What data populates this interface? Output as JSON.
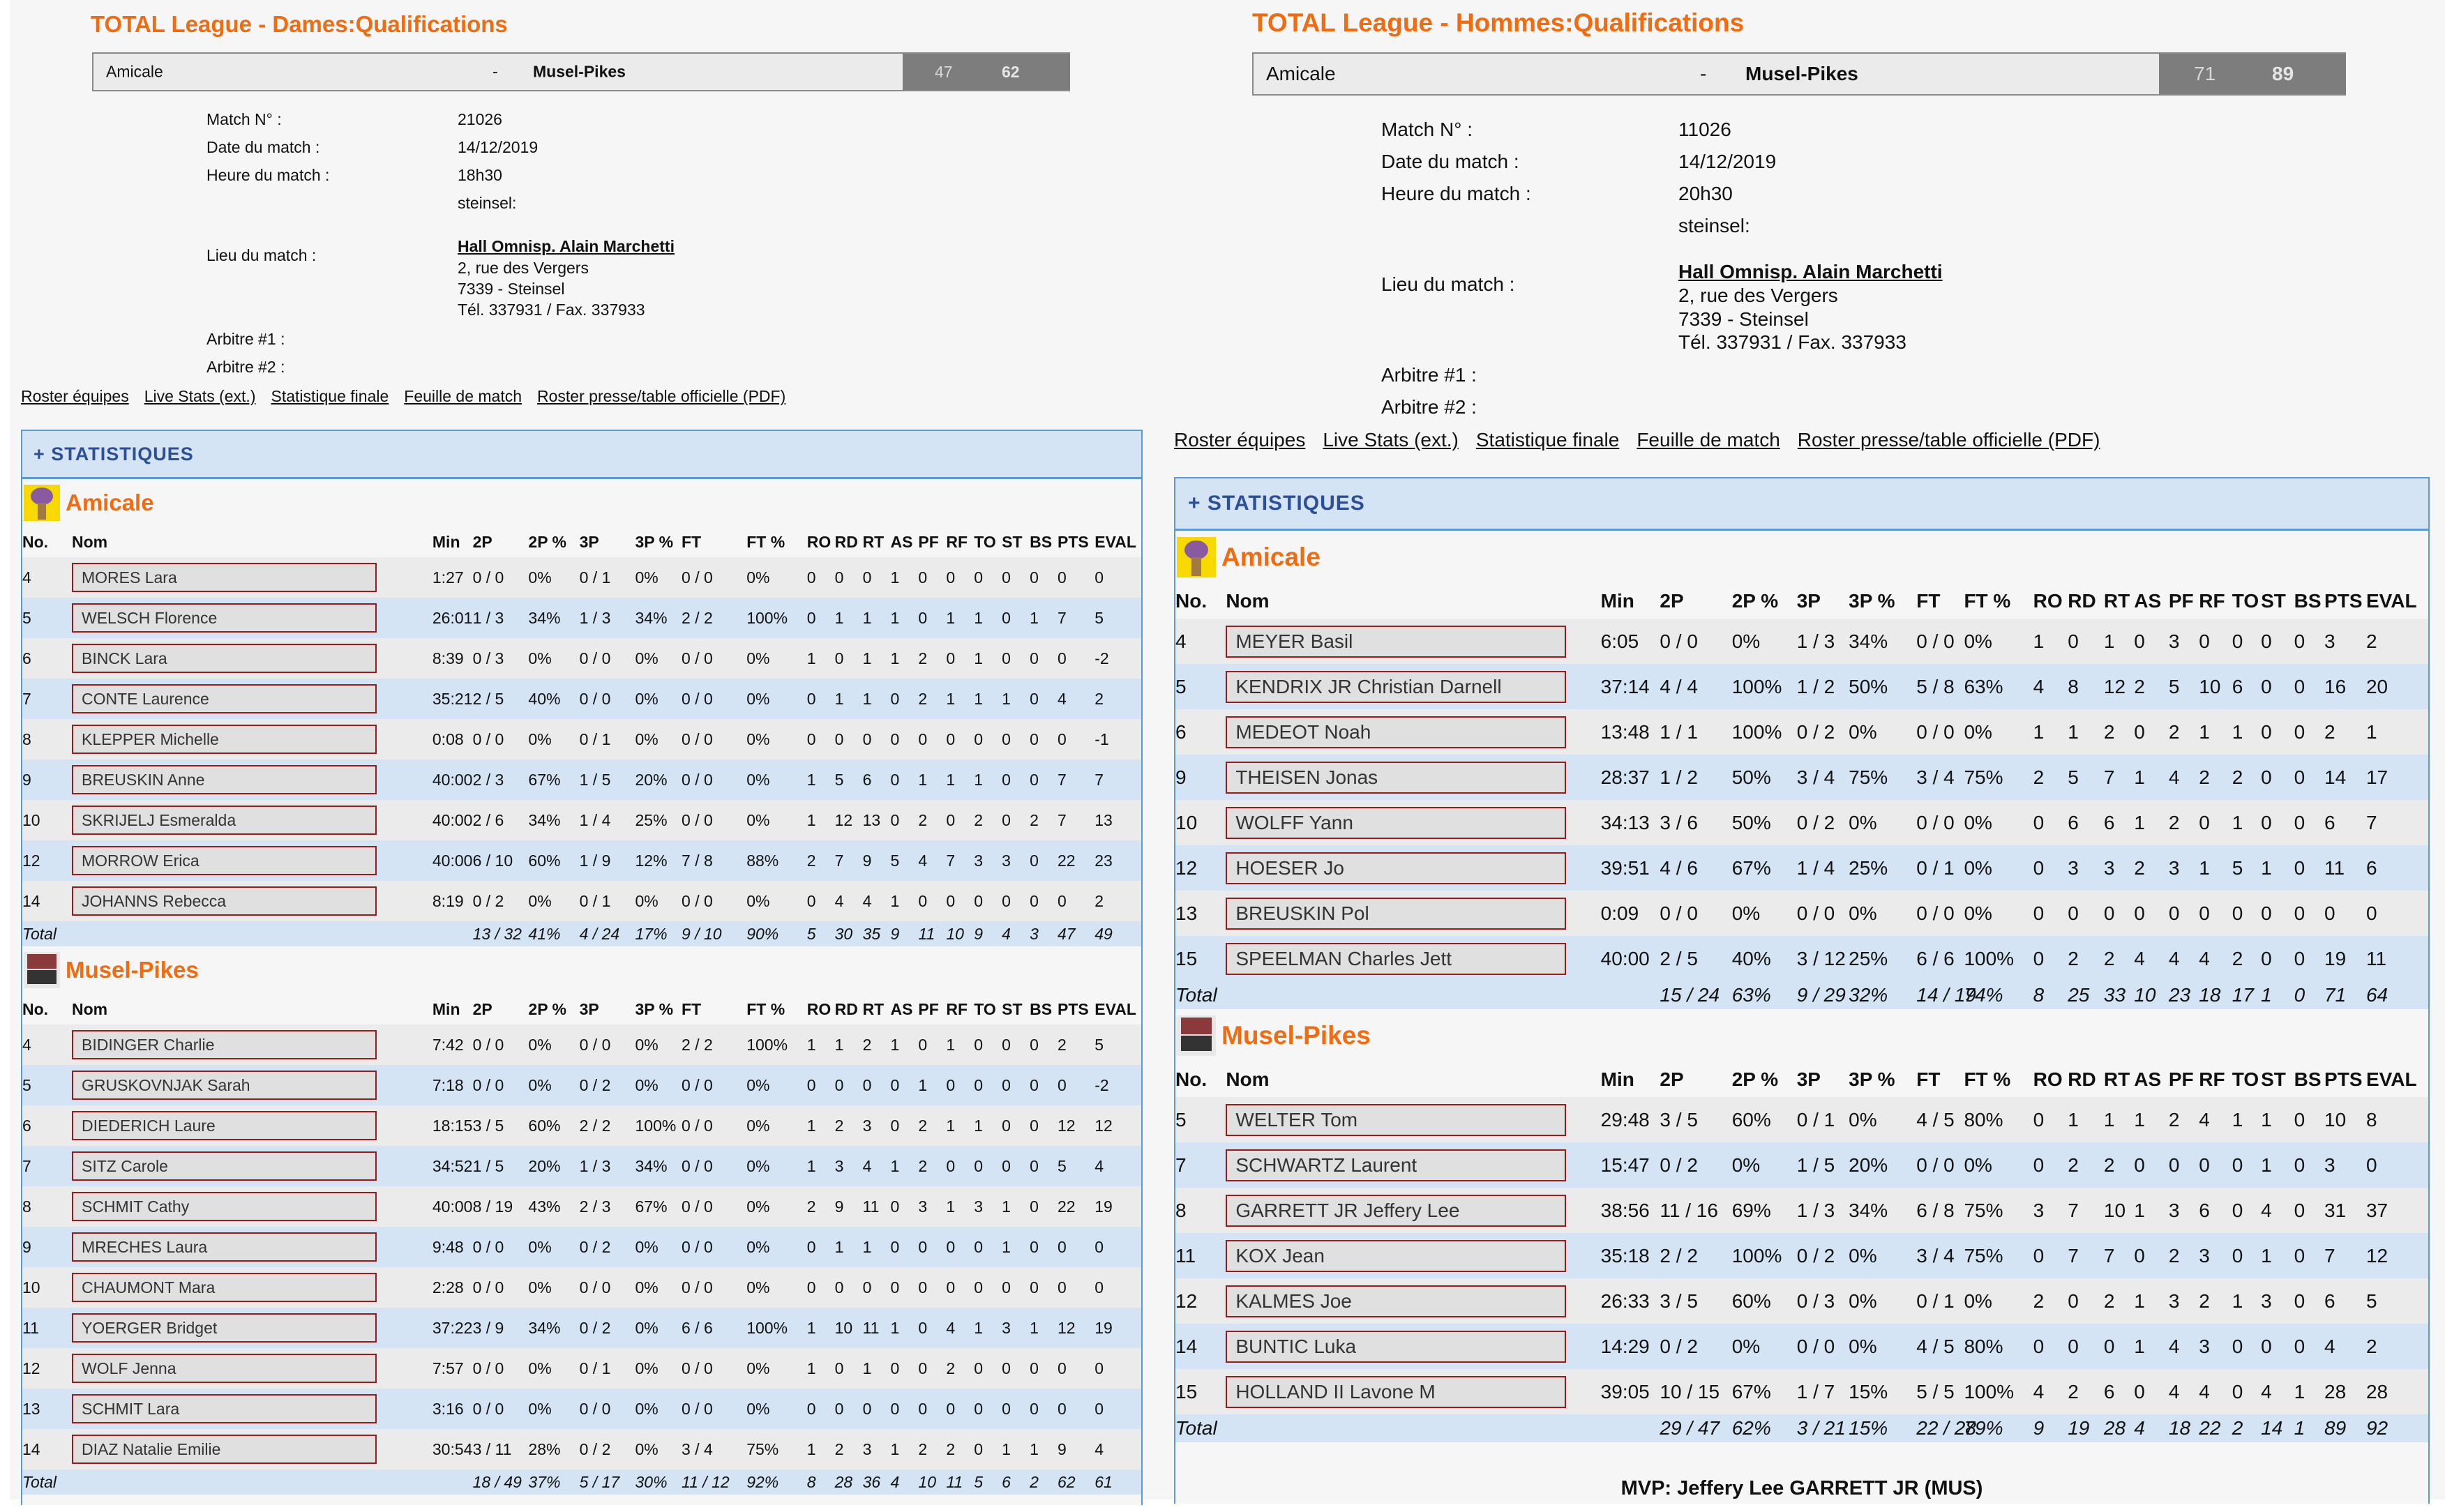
{
  "columns": [
    "No.",
    "Nom",
    "Min",
    "2P",
    "2P %",
    "3P",
    "3P %",
    "FT",
    "FT %",
    "RO",
    "RD",
    "RT",
    "AS",
    "PF",
    "RF",
    "TO",
    "ST",
    "BS",
    "PTS",
    "EVAL"
  ],
  "labels": {
    "match_no": "Match N° :",
    "date": "Date du match :",
    "time": "Heure du match :",
    "venue": "Lieu du match :",
    "ref1": "Arbitre #1 :",
    "ref2": "Arbitre #2 :",
    "stats_header": "+ STATISTIQUES",
    "total": "Total",
    "separator": "-"
  },
  "links": [
    "Roster équipes",
    "Live Stats (ext.)",
    "Statistique finale",
    "Feuille de match",
    "Roster presse/table officielle (PDF)"
  ],
  "colors": {
    "accent_orange": "#f26b0f",
    "stats_blue": "#2c4f9a",
    "row_blue": "#d4e4f4",
    "row_grey": "#ebebeb",
    "name_border": "#9b1b1b",
    "score_bg": "#7d7d7d"
  },
  "matches": [
    {
      "title": "TOTAL League - Dames:Qualifications",
      "home": "Amicale",
      "away": "Musel-Pikes",
      "home_score": "47",
      "away_score": "62",
      "match_no": "21026",
      "date": "14/12/2019",
      "time": "18h30",
      "city": "steinsel:",
      "venue_name": "Hall Omnisp. Alain Marchetti",
      "venue_addr1": "2, rue des Vergers",
      "venue_addr2": "7339 - Steinsel",
      "venue_phone": "Tél. 337931 / Fax. 337933",
      "teams": [
        {
          "name": "Amicale",
          "logo": "amicale-logo",
          "players": [
            [
              "4",
              "MORES Lara",
              "1:27",
              "0 / 0",
              "0%",
              "0 / 1",
              "0%",
              "0 / 0",
              "0%",
              "0",
              "0",
              "0",
              "1",
              "0",
              "0",
              "0",
              "0",
              "0",
              "0",
              "0"
            ],
            [
              "5",
              "WELSCH Florence",
              "26:01",
              "1 / 3",
              "34%",
              "1 / 3",
              "34%",
              "2 / 2",
              "100%",
              "0",
              "1",
              "1",
              "1",
              "0",
              "1",
              "1",
              "0",
              "1",
              "7",
              "5"
            ],
            [
              "6",
              "BINCK Lara",
              "8:39",
              "0 / 3",
              "0%",
              "0 / 0",
              "0%",
              "0 / 0",
              "0%",
              "1",
              "0",
              "1",
              "1",
              "2",
              "0",
              "1",
              "0",
              "0",
              "0",
              "-2"
            ],
            [
              "7",
              "CONTE Laurence",
              "35:21",
              "2 / 5",
              "40%",
              "0 / 0",
              "0%",
              "0 / 0",
              "0%",
              "0",
              "1",
              "1",
              "0",
              "2",
              "1",
              "1",
              "1",
              "0",
              "4",
              "2"
            ],
            [
              "8",
              "KLEPPER Michelle",
              "0:08",
              "0 / 0",
              "0%",
              "0 / 1",
              "0%",
              "0 / 0",
              "0%",
              "0",
              "0",
              "0",
              "0",
              "0",
              "0",
              "0",
              "0",
              "0",
              "0",
              "-1"
            ],
            [
              "9",
              "BREUSKIN Anne",
              "40:00",
              "2 / 3",
              "67%",
              "1 / 5",
              "20%",
              "0 / 0",
              "0%",
              "1",
              "5",
              "6",
              "0",
              "1",
              "1",
              "1",
              "0",
              "0",
              "7",
              "7"
            ],
            [
              "10",
              "SKRIJELJ Esmeralda",
              "40:00",
              "2 / 6",
              "34%",
              "1 / 4",
              "25%",
              "0 / 0",
              "0%",
              "1",
              "12",
              "13",
              "0",
              "2",
              "0",
              "2",
              "0",
              "2",
              "7",
              "13"
            ],
            [
              "12",
              "MORROW Erica",
              "40:00",
              "6 / 10",
              "60%",
              "1 / 9",
              "12%",
              "7 / 8",
              "88%",
              "2",
              "7",
              "9",
              "5",
              "4",
              "7",
              "3",
              "3",
              "0",
              "22",
              "23"
            ],
            [
              "14",
              "JOHANNS Rebecca",
              "8:19",
              "0 / 2",
              "0%",
              "0 / 1",
              "0%",
              "0 / 0",
              "0%",
              "0",
              "4",
              "4",
              "1",
              "0",
              "0",
              "0",
              "0",
              "0",
              "0",
              "2"
            ]
          ],
          "total": [
            "13 / 32",
            "41%",
            "4 / 24",
            "17%",
            "9 / 10",
            "90%",
            "5",
            "30",
            "35",
            "9",
            "11",
            "10",
            "9",
            "4",
            "3",
            "47",
            "49"
          ]
        },
        {
          "name": "Musel-Pikes",
          "logo": "musel-pikes-logo",
          "players": [
            [
              "4",
              "BIDINGER Charlie",
              "7:42",
              "0 / 0",
              "0%",
              "0 / 0",
              "0%",
              "2 / 2",
              "100%",
              "1",
              "1",
              "2",
              "1",
              "0",
              "1",
              "0",
              "0",
              "0",
              "2",
              "5"
            ],
            [
              "5",
              "GRUSKOVNJAK Sarah",
              "7:18",
              "0 / 0",
              "0%",
              "0 / 2",
              "0%",
              "0 / 0",
              "0%",
              "0",
              "0",
              "0",
              "0",
              "1",
              "0",
              "0",
              "0",
              "0",
              "0",
              "-2"
            ],
            [
              "6",
              "DIEDERICH Laure",
              "18:15",
              "3 / 5",
              "60%",
              "2 / 2",
              "100%",
              "0 / 0",
              "0%",
              "1",
              "2",
              "3",
              "0",
              "2",
              "1",
              "1",
              "0",
              "0",
              "12",
              "12"
            ],
            [
              "7",
              "SITZ Carole",
              "34:52",
              "1 / 5",
              "20%",
              "1 / 3",
              "34%",
              "0 / 0",
              "0%",
              "1",
              "3",
              "4",
              "1",
              "2",
              "0",
              "0",
              "0",
              "0",
              "5",
              "4"
            ],
            [
              "8",
              "SCHMIT Cathy",
              "40:00",
              "8 / 19",
              "43%",
              "2 / 3",
              "67%",
              "0 / 0",
              "0%",
              "2",
              "9",
              "11",
              "0",
              "3",
              "1",
              "3",
              "1",
              "0",
              "22",
              "19"
            ],
            [
              "9",
              "MRECHES Laura",
              "9:48",
              "0 / 0",
              "0%",
              "0 / 2",
              "0%",
              "0 / 0",
              "0%",
              "0",
              "1",
              "1",
              "0",
              "0",
              "0",
              "0",
              "1",
              "0",
              "0",
              "0"
            ],
            [
              "10",
              "CHAUMONT Mara",
              "2:28",
              "0 / 0",
              "0%",
              "0 / 0",
              "0%",
              "0 / 0",
              "0%",
              "0",
              "0",
              "0",
              "0",
              "0",
              "0",
              "0",
              "0",
              "0",
              "0",
              "0"
            ],
            [
              "11",
              "YOERGER Bridget",
              "37:22",
              "3 / 9",
              "34%",
              "0 / 2",
              "0%",
              "6 / 6",
              "100%",
              "1",
              "10",
              "11",
              "1",
              "0",
              "4",
              "1",
              "3",
              "1",
              "12",
              "19"
            ],
            [
              "12",
              "WOLF Jenna",
              "7:57",
              "0 / 0",
              "0%",
              "0 / 1",
              "0%",
              "0 / 0",
              "0%",
              "1",
              "0",
              "1",
              "0",
              "0",
              "2",
              "0",
              "0",
              "0",
              "0",
              "0"
            ],
            [
              "13",
              "SCHMIT Lara",
              "3:16",
              "0 / 0",
              "0%",
              "0 / 0",
              "0%",
              "0 / 0",
              "0%",
              "0",
              "0",
              "0",
              "0",
              "0",
              "0",
              "0",
              "0",
              "0",
              "0",
              "0"
            ],
            [
              "14",
              "DIAZ Natalie Emilie",
              "30:54",
              "3 / 11",
              "28%",
              "0 / 2",
              "0%",
              "3 / 4",
              "75%",
              "1",
              "2",
              "3",
              "1",
              "2",
              "2",
              "0",
              "1",
              "1",
              "9",
              "4"
            ]
          ],
          "total": [
            "18 / 49",
            "37%",
            "5 / 17",
            "30%",
            "11 / 12",
            "92%",
            "8",
            "28",
            "36",
            "4",
            "10",
            "11",
            "5",
            "6",
            "2",
            "62",
            "61"
          ]
        }
      ]
    },
    {
      "title": "TOTAL League - Hommes:Qualifications",
      "home": "Amicale",
      "away": "Musel-Pikes",
      "home_score": "71",
      "away_score": "89",
      "match_no": "11026",
      "date": "14/12/2019",
      "time": "20h30",
      "city": "steinsel:",
      "venue_name": "Hall Omnisp. Alain Marchetti",
      "venue_addr1": "2, rue des Vergers",
      "venue_addr2": "7339 - Steinsel",
      "venue_phone": "Tél. 337931 / Fax. 337933",
      "mvp": "MVP: Jeffery Lee GARRETT JR (MUS)",
      "teams": [
        {
          "name": "Amicale",
          "logo": "amicale-logo",
          "players": [
            [
              "4",
              "MEYER Basil",
              "6:05",
              "0 / 0",
              "0%",
              "1 / 3",
              "34%",
              "0 / 0",
              "0%",
              "1",
              "0",
              "1",
              "0",
              "3",
              "0",
              "0",
              "0",
              "0",
              "3",
              "2"
            ],
            [
              "5",
              "KENDRIX JR Christian Darnell",
              "37:14",
              "4 / 4",
              "100%",
              "1 / 2",
              "50%",
              "5 / 8",
              "63%",
              "4",
              "8",
              "12",
              "2",
              "5",
              "10",
              "6",
              "0",
              "0",
              "16",
              "20"
            ],
            [
              "6",
              "MEDEOT Noah",
              "13:48",
              "1 / 1",
              "100%",
              "0 / 2",
              "0%",
              "0 / 0",
              "0%",
              "1",
              "1",
              "2",
              "0",
              "2",
              "1",
              "1",
              "0",
              "0",
              "2",
              "1"
            ],
            [
              "9",
              "THEISEN Jonas",
              "28:37",
              "1 / 2",
              "50%",
              "3 / 4",
              "75%",
              "3 / 4",
              "75%",
              "2",
              "5",
              "7",
              "1",
              "4",
              "2",
              "2",
              "0",
              "0",
              "14",
              "17"
            ],
            [
              "10",
              "WOLFF Yann",
              "34:13",
              "3 / 6",
              "50%",
              "0 / 2",
              "0%",
              "0 / 0",
              "0%",
              "0",
              "6",
              "6",
              "1",
              "2",
              "0",
              "1",
              "0",
              "0",
              "6",
              "7"
            ],
            [
              "12",
              "HOESER Jo",
              "39:51",
              "4 / 6",
              "67%",
              "1 / 4",
              "25%",
              "0 / 1",
              "0%",
              "0",
              "3",
              "3",
              "2",
              "3",
              "1",
              "5",
              "1",
              "0",
              "11",
              "6"
            ],
            [
              "13",
              "BREUSKIN Pol",
              "0:09",
              "0 / 0",
              "0%",
              "0 / 0",
              "0%",
              "0 / 0",
              "0%",
              "0",
              "0",
              "0",
              "0",
              "0",
              "0",
              "0",
              "0",
              "0",
              "0",
              "0"
            ],
            [
              "15",
              "SPEELMAN Charles Jett",
              "40:00",
              "2 / 5",
              "40%",
              "3 / 12",
              "25%",
              "6 / 6",
              "100%",
              "0",
              "2",
              "2",
              "4",
              "4",
              "4",
              "2",
              "0",
              "0",
              "19",
              "11"
            ]
          ],
          "total": [
            "15 / 24",
            "63%",
            "9 / 29",
            "32%",
            "14 / 19",
            "74%",
            "8",
            "25",
            "33",
            "10",
            "23",
            "18",
            "17",
            "1",
            "0",
            "71",
            "64"
          ]
        },
        {
          "name": "Musel-Pikes",
          "logo": "musel-pikes-logo",
          "players": [
            [
              "5",
              "WELTER Tom",
              "29:48",
              "3 / 5",
              "60%",
              "0 / 1",
              "0%",
              "4 / 5",
              "80%",
              "0",
              "1",
              "1",
              "1",
              "2",
              "4",
              "1",
              "1",
              "0",
              "10",
              "8"
            ],
            [
              "7",
              "SCHWARTZ Laurent",
              "15:47",
              "0 / 2",
              "0%",
              "1 / 5",
              "20%",
              "0 / 0",
              "0%",
              "0",
              "2",
              "2",
              "0",
              "0",
              "0",
              "0",
              "1",
              "0",
              "3",
              "0"
            ],
            [
              "8",
              "GARRETT JR Jeffery Lee",
              "38:56",
              "11 / 16",
              "69%",
              "1 / 3",
              "34%",
              "6 / 8",
              "75%",
              "3",
              "7",
              "10",
              "1",
              "3",
              "6",
              "0",
              "4",
              "0",
              "31",
              "37"
            ],
            [
              "11",
              "KOX Jean",
              "35:18",
              "2 / 2",
              "100%",
              "0 / 2",
              "0%",
              "3 / 4",
              "75%",
              "0",
              "7",
              "7",
              "0",
              "2",
              "3",
              "0",
              "1",
              "0",
              "7",
              "12"
            ],
            [
              "12",
              "KALMES Joe",
              "26:33",
              "3 / 5",
              "60%",
              "0 / 3",
              "0%",
              "0 / 1",
              "0%",
              "2",
              "0",
              "2",
              "1",
              "3",
              "2",
              "1",
              "3",
              "0",
              "6",
              "5"
            ],
            [
              "14",
              "BUNTIC Luka",
              "14:29",
              "0 / 2",
              "0%",
              "0 / 0",
              "0%",
              "4 / 5",
              "80%",
              "0",
              "0",
              "0",
              "1",
              "4",
              "3",
              "0",
              "0",
              "0",
              "4",
              "2"
            ],
            [
              "15",
              "HOLLAND II Lavone M",
              "39:05",
              "10 / 15",
              "67%",
              "1 / 7",
              "15%",
              "5 / 5",
              "100%",
              "4",
              "2",
              "6",
              "0",
              "4",
              "4",
              "0",
              "4",
              "1",
              "28",
              "28"
            ]
          ],
          "total": [
            "29 / 47",
            "62%",
            "3 / 21",
            "15%",
            "22 / 28",
            "79%",
            "9",
            "19",
            "28",
            "4",
            "18",
            "22",
            "2",
            "14",
            "1",
            "89",
            "92"
          ]
        }
      ]
    }
  ]
}
